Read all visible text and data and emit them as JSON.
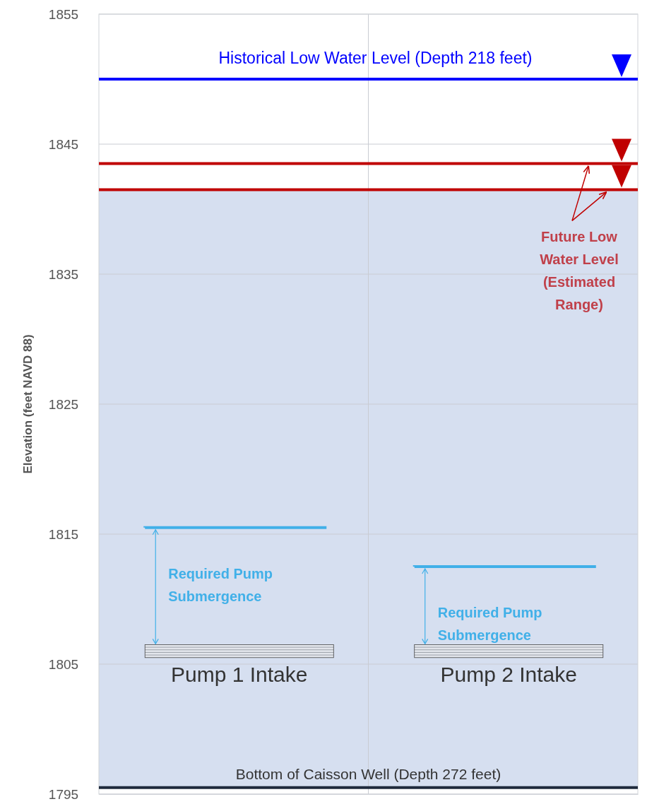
{
  "chart_data": {
    "type": "bar",
    "categories": [
      null,
      null
    ],
    "ylabel": "Elevation (feet NAVD 88)",
    "ylim": [
      1795,
      1855
    ],
    "yticks": [
      1795,
      1805,
      1815,
      1825,
      1835,
      1845,
      1855
    ],
    "grid": true,
    "series": [
      {
        "type": "bar",
        "color": "#d6dff0",
        "base": [
          1795.5,
          1795.5
        ],
        "values": [
          46,
          46
        ]
      },
      {
        "type": "bar",
        "color": "#e3e6ec",
        "base": [
          1805.5,
          1805.5
        ],
        "values": [
          1,
          1
        ],
        "value_labels": [
          "Pump 1 Intake",
          "Pump 2 Intake"
        ]
      },
      {
        "type": "bar",
        "color": "#41b0e8",
        "line_style": "solid",
        "base": [
          1806.5,
          1806.5
        ],
        "values": [
          9,
          6
        ],
        "value_labels": [
          "Required Pump Submergence",
          "Required Pump Submergence"
        ]
      }
    ],
    "ref_lines": [
      {
        "axis": "y",
        "value": 1850,
        "label": "Historical Low Water Level (Depth 218 feet)",
        "color": "#0000ff"
      },
      {
        "axis": "y",
        "value": 1843.5,
        "label": null,
        "color": "#c00000"
      },
      {
        "axis": "y",
        "value": 1841.5,
        "label": "Future Low Water Level (Estimated Range)",
        "color": "#c00000"
      },
      {
        "axis": "y",
        "value": 1795.5,
        "label": "Bottom of Caisson Well (Depth 272 feet)",
        "color": "#1f2a3c"
      }
    ]
  }
}
